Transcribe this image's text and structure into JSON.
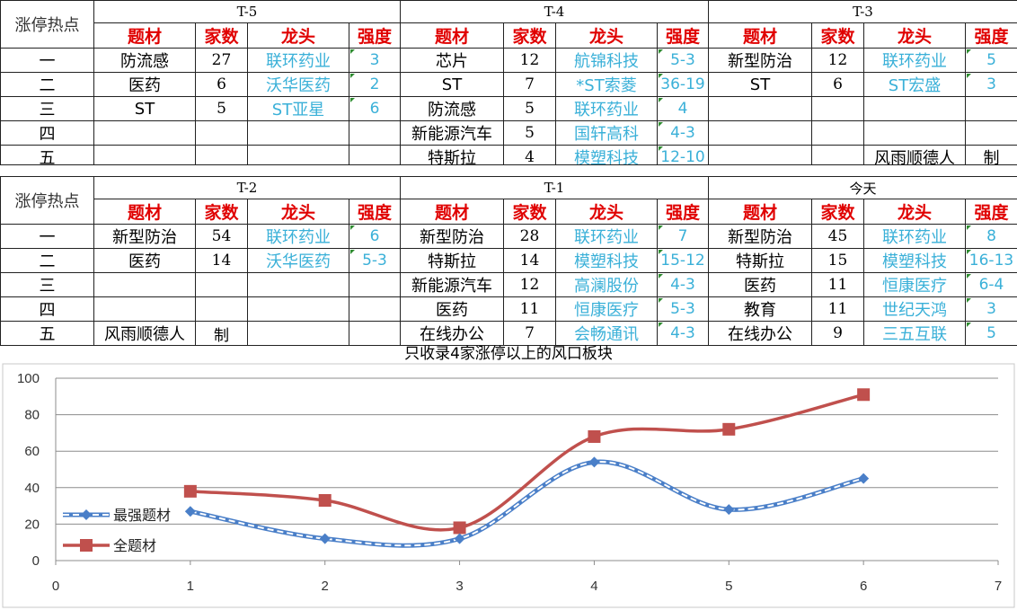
{
  "corner_label": "涨停热点",
  "headers": {
    "theme": "题材",
    "count": "家数",
    "leader": "龙头",
    "strength": "强度"
  },
  "row_labels": [
    "一",
    "二",
    "三",
    "四",
    "五"
  ],
  "tables": [
    {
      "periods": [
        {
          "name": "T-5",
          "rows": [
            {
              "theme": "防流感",
              "count": "27",
              "leader": "联环药业",
              "strength": "3"
            },
            {
              "theme": "医药",
              "count": "6",
              "leader": "沃华医药",
              "strength": "2"
            },
            {
              "theme": "ST",
              "count": "5",
              "leader": "ST亚星",
              "strength": "6"
            },
            {
              "theme": "",
              "count": "",
              "leader": "",
              "strength": ""
            },
            {
              "theme": "",
              "count": "",
              "leader": "",
              "strength": ""
            }
          ]
        },
        {
          "name": "T-4",
          "rows": [
            {
              "theme": "芯片",
              "count": "12",
              "leader": "航锦科技",
              "strength": "5-3"
            },
            {
              "theme": "ST",
              "count": "7",
              "leader": "*ST索菱",
              "strength": "36-19"
            },
            {
              "theme": "防流感",
              "count": "5",
              "leader": "联环药业",
              "strength": "4"
            },
            {
              "theme": "新能源汽车",
              "count": "5",
              "leader": "国轩高科",
              "strength": "4-3"
            },
            {
              "theme": "特斯拉",
              "count": "4",
              "leader": "模塑科技",
              "strength": "12-10"
            }
          ]
        },
        {
          "name": "T-3",
          "rows": [
            {
              "theme": "新型防治",
              "count": "12",
              "leader": "联环药业",
              "strength": "5"
            },
            {
              "theme": "ST",
              "count": "6",
              "leader": "ST宏盛",
              "strength": "3"
            },
            {
              "theme": "",
              "count": "",
              "leader": "",
              "strength": ""
            },
            {
              "theme": "",
              "count": "",
              "leader": "",
              "strength": ""
            },
            {
              "theme": "",
              "count": "",
              "leader": "风雨顺德人",
              "strength": "制",
              "plain": true
            }
          ]
        }
      ]
    },
    {
      "periods": [
        {
          "name": "T-2",
          "rows": [
            {
              "theme": "新型防治",
              "count": "54",
              "leader": "联环药业",
              "strength": "6"
            },
            {
              "theme": "医药",
              "count": "14",
              "leader": "沃华医药",
              "strength": "5-3"
            },
            {
              "theme": "",
              "count": "",
              "leader": "",
              "strength": ""
            },
            {
              "theme": "",
              "count": "",
              "leader": "",
              "strength": ""
            },
            {
              "theme": "风雨顺德人",
              "count": "制",
              "leader": "",
              "strength": ""
            }
          ]
        },
        {
          "name": "T-1",
          "rows": [
            {
              "theme": "新型防治",
              "count": "28",
              "leader": "联环药业",
              "strength": "7"
            },
            {
              "theme": "特斯拉",
              "count": "14",
              "leader": "模塑科技",
              "strength": "15-12"
            },
            {
              "theme": "新能源汽车",
              "count": "12",
              "leader": "高澜股份",
              "strength": "4-3"
            },
            {
              "theme": "医药",
              "count": "11",
              "leader": "恒康医疗",
              "strength": "5-3"
            },
            {
              "theme": "在线办公",
              "count": "7",
              "leader": "会畅通讯",
              "strength": "4-3"
            }
          ]
        },
        {
          "name": "今天",
          "rows": [
            {
              "theme": "新型防治",
              "count": "45",
              "leader": "联环药业",
              "strength": "8"
            },
            {
              "theme": "特斯拉",
              "count": "15",
              "leader": "模塑科技",
              "strength": "16-13"
            },
            {
              "theme": "医药",
              "count": "11",
              "leader": "恒康医疗",
              "strength": "6-4"
            },
            {
              "theme": "教育",
              "count": "11",
              "leader": "世纪天鸿",
              "strength": "3"
            },
            {
              "theme": "在线办公",
              "count": "9",
              "leader": "三五互联",
              "strength": "5"
            }
          ]
        }
      ]
    }
  ],
  "chart_data": {
    "type": "line",
    "title": "只收录4家涨停以上的风口板块",
    "xlim": [
      0,
      7
    ],
    "ylim": [
      0,
      100
    ],
    "xticks": [
      0,
      1,
      2,
      3,
      4,
      5,
      6,
      7
    ],
    "yticks": [
      0,
      20,
      40,
      60,
      80,
      100
    ],
    "grid": "horizontal",
    "legend_position": "left",
    "series": [
      {
        "name": "最强题材",
        "color": "#4a7fc8",
        "style": "dashed",
        "marker": "diamond",
        "x": [
          1,
          2,
          3,
          4,
          5,
          6
        ],
        "y": [
          27,
          12,
          12,
          54,
          28,
          45
        ]
      },
      {
        "name": "全题材",
        "color": "#c0504d",
        "style": "solid",
        "marker": "square",
        "x": [
          1,
          2,
          3,
          4,
          5,
          6
        ],
        "y": [
          38,
          33,
          18,
          68,
          72,
          91
        ]
      }
    ]
  }
}
